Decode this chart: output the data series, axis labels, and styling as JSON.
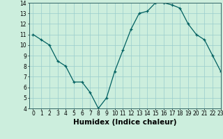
{
  "x": [
    0,
    1,
    2,
    3,
    4,
    5,
    6,
    7,
    8,
    9,
    10,
    11,
    12,
    13,
    14,
    15,
    16,
    17,
    18,
    19,
    20,
    21,
    22,
    23
  ],
  "y": [
    11.0,
    10.5,
    10.0,
    8.5,
    8.0,
    6.5,
    6.5,
    5.5,
    4.0,
    5.0,
    7.5,
    9.5,
    11.5,
    13.0,
    13.2,
    14.0,
    14.0,
    13.8,
    13.5,
    12.0,
    11.0,
    10.5,
    9.0,
    7.5
  ],
  "xlabel": "Humidex (Indice chaleur)",
  "ylim": [
    4,
    14
  ],
  "xlim": [
    -0.5,
    23
  ],
  "yticks": [
    4,
    5,
    6,
    7,
    8,
    9,
    10,
    11,
    12,
    13,
    14
  ],
  "xticks": [
    0,
    1,
    2,
    3,
    4,
    5,
    6,
    7,
    8,
    9,
    10,
    11,
    12,
    13,
    14,
    15,
    16,
    17,
    18,
    19,
    20,
    21,
    22,
    23
  ],
  "line_color": "#006060",
  "marker": "+",
  "bg_color": "#cceedd",
  "grid_color": "#99cccc",
  "tick_fontsize": 5.5,
  "xlabel_fontsize": 7.5
}
